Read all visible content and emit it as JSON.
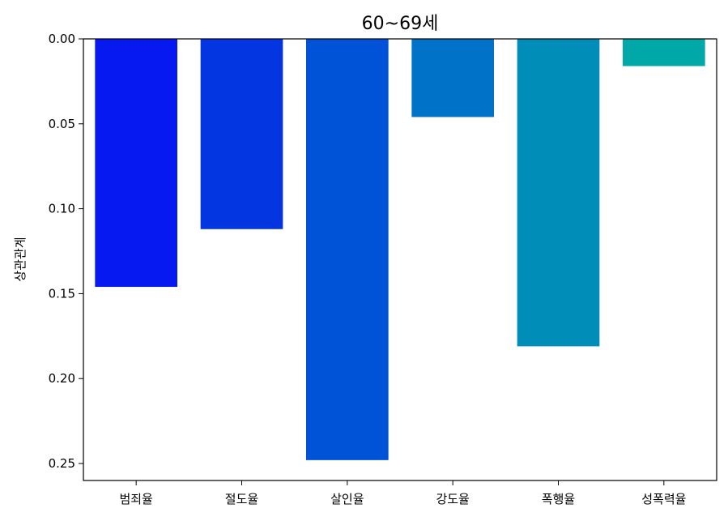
{
  "chart_data": {
    "type": "bar",
    "title": "60~69세",
    "xlabel": "",
    "ylabel": "상관관계",
    "categories": [
      "범죄율",
      "절도율",
      "살인율",
      "강도율",
      "폭행율",
      "성폭력율"
    ],
    "values": [
      0.146,
      0.112,
      0.248,
      0.046,
      0.181,
      0.016
    ],
    "colors": [
      "#0519f0",
      "#0336e0",
      "#0052d6",
      "#0072c8",
      "#008eb8",
      "#00a9a8"
    ],
    "ylim": [
      0,
      0.26
    ],
    "y_inverted": true,
    "yticks": [
      "0.00",
      "0.05",
      "0.10",
      "0.15",
      "0.20",
      "0.25"
    ],
    "grid": false
  }
}
